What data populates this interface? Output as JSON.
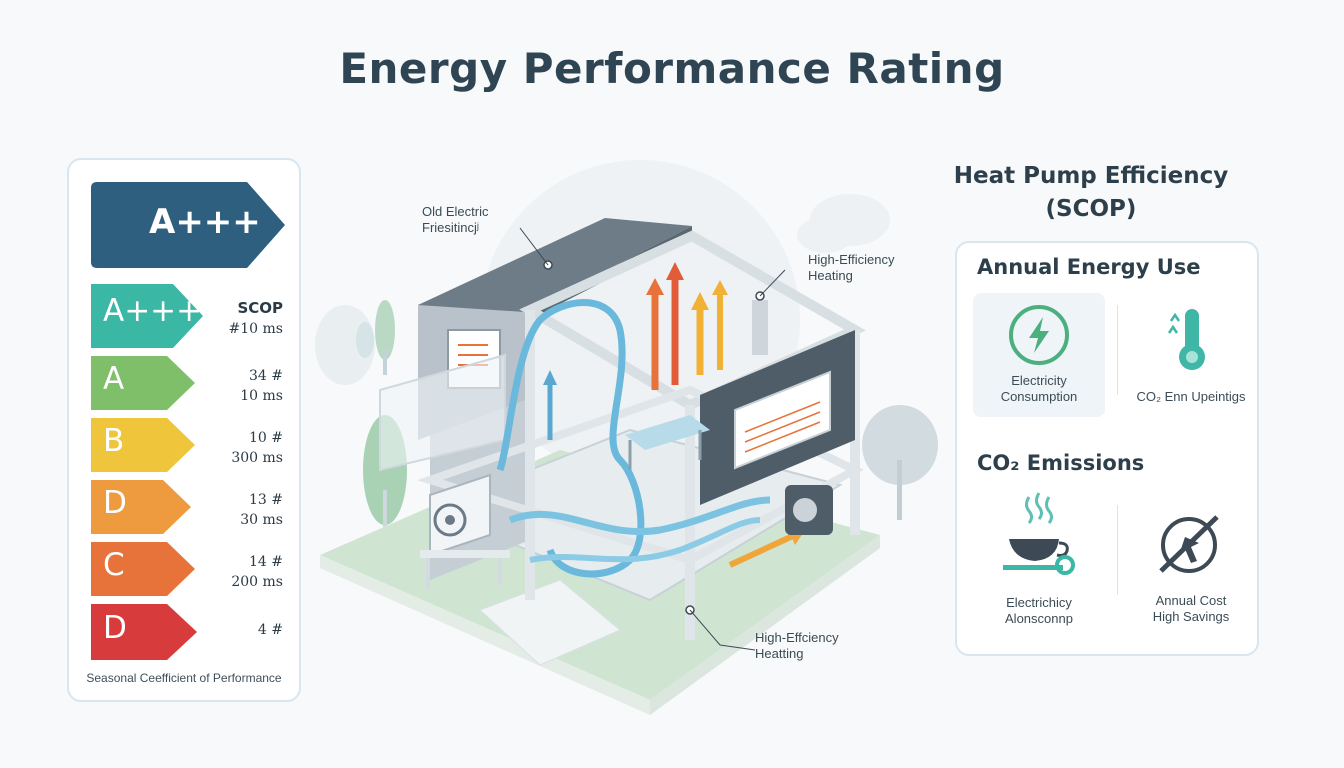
{
  "page": {
    "title": "Energy Performance Rating"
  },
  "rating_panel": {
    "hero_badge": "A+++",
    "classes": [
      {
        "letter": "A+++",
        "metric_top": "SCOP",
        "metric_bottom": "#10 ms",
        "color": "#3ab7a5"
      },
      {
        "letter": "A",
        "metric_top": "34 #",
        "metric_bottom": "10 ms",
        "color": "#7fbf6a"
      },
      {
        "letter": "B",
        "metric_top": "10 #",
        "metric_bottom": "300 ms",
        "color": "#efc53b"
      },
      {
        "letter": "D",
        "metric_top": "13 #",
        "metric_bottom": "30 ms",
        "color": "#ee9a3e"
      },
      {
        "letter": "C",
        "metric_top": "14 #",
        "metric_bottom": "200 ms",
        "color": "#e8733a"
      },
      {
        "letter": "D",
        "metric_top": "4 #",
        "metric_bottom": "",
        "color": "#d83b3b"
      }
    ],
    "footer": "Seasonal Ceefficient of Performance",
    "hero_color": "#2e5f7f"
  },
  "house": {
    "callout_old_line1": "Old Electric",
    "callout_old_line2": "Friesitincjʲ",
    "callout_high_top_line1": "High-Efficiency",
    "callout_high_top_line2": "Heating",
    "callout_high_bottom_line1": "High-Effciency",
    "callout_high_bottom_line2": "Heatting"
  },
  "right": {
    "heading_line1": "Heat Pump Efficiency",
    "heading_line2": "(SCOP)",
    "annual_title": "Annual Energy Use",
    "annual_cards": [
      {
        "line1": "Electricity",
        "line2": "Consumption",
        "icon": "lightning-icon"
      },
      {
        "line1": "CO₂ Enn Upeintigs",
        "line2": "",
        "icon": "thermometer-icon"
      }
    ],
    "co2_title": "CO₂ Emissions",
    "co2_cards": [
      {
        "line1": "Electrichicy",
        "line2": "Alonsconnp",
        "icon": "steaming-cup-icon"
      },
      {
        "line1": "Annual Cost",
        "line2": "High Savings",
        "icon": "no-cost-icon"
      }
    ]
  }
}
